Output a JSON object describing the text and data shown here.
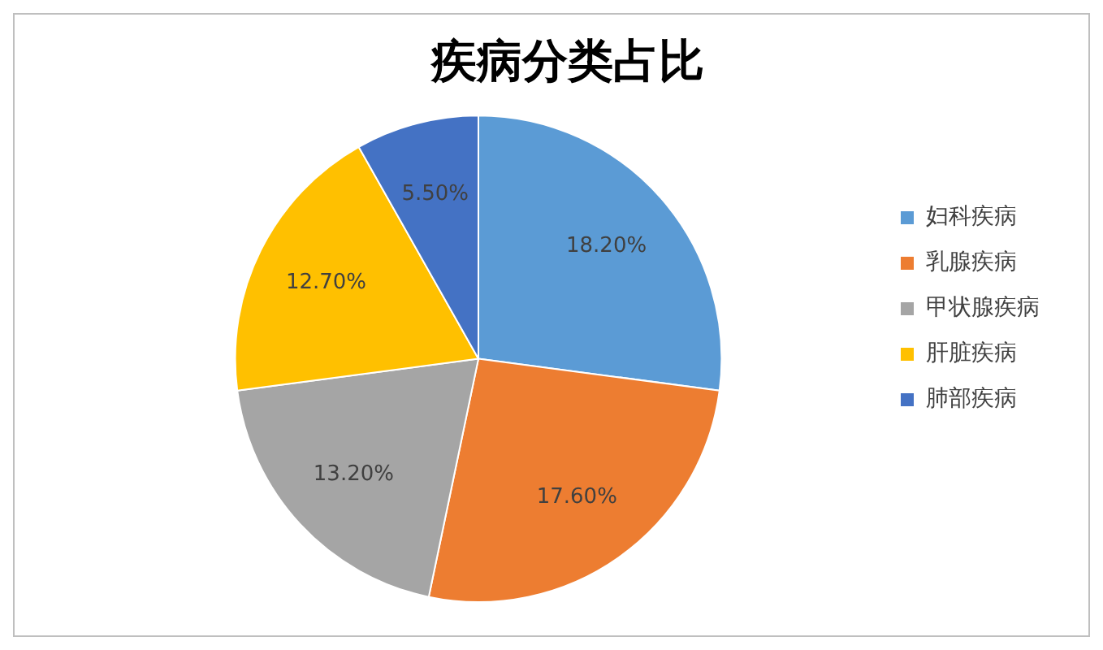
{
  "chart_data": {
    "type": "pie",
    "title": "疾病分类占比",
    "categories": [
      "妇科疾病",
      "乳腺疾病",
      "甲状腺疾病",
      "肝脏疾病",
      "肺部疾病"
    ],
    "values": [
      18.2,
      17.6,
      13.2,
      12.7,
      5.5
    ],
    "value_labels": [
      "18.20%",
      "17.60%",
      "13.20%",
      "12.70%",
      "5.50%"
    ],
    "colors": [
      "#5b9bd5",
      "#ed7d31",
      "#a5a5a5",
      "#ffc000",
      "#4472c4"
    ],
    "legend": "right"
  }
}
